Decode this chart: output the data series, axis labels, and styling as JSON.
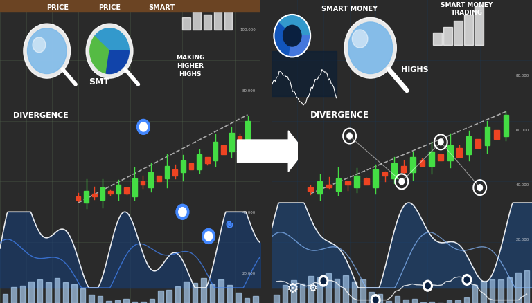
{
  "left_bg": "#3d5040",
  "right_bg": "#0a2040",
  "arrow_color": "#ffffff",
  "left_labels": [
    "PRICE",
    "PRICE",
    "SMART",
    "MAKING\nHIGHER\nHIGHS",
    "SMT",
    "DIVERGENCE"
  ],
  "right_labels": [
    "SMART MONEY",
    "SMART MONEY\nTRADING",
    "HIGHS",
    "DIVERGENCE"
  ],
  "candle_up_color": "#44dd44",
  "candle_down_color": "#ee4422",
  "wave_color_left": "#aaccff",
  "wave_color_right": "#ffffff",
  "bar_color_left": "#aaccee",
  "bar_color_right": "#aaccee",
  "grid_color_left": "#5a7055",
  "grid_color_right": "#1a3a5a",
  "accent_blue": "#4488ff",
  "accent_white": "#ffffff"
}
